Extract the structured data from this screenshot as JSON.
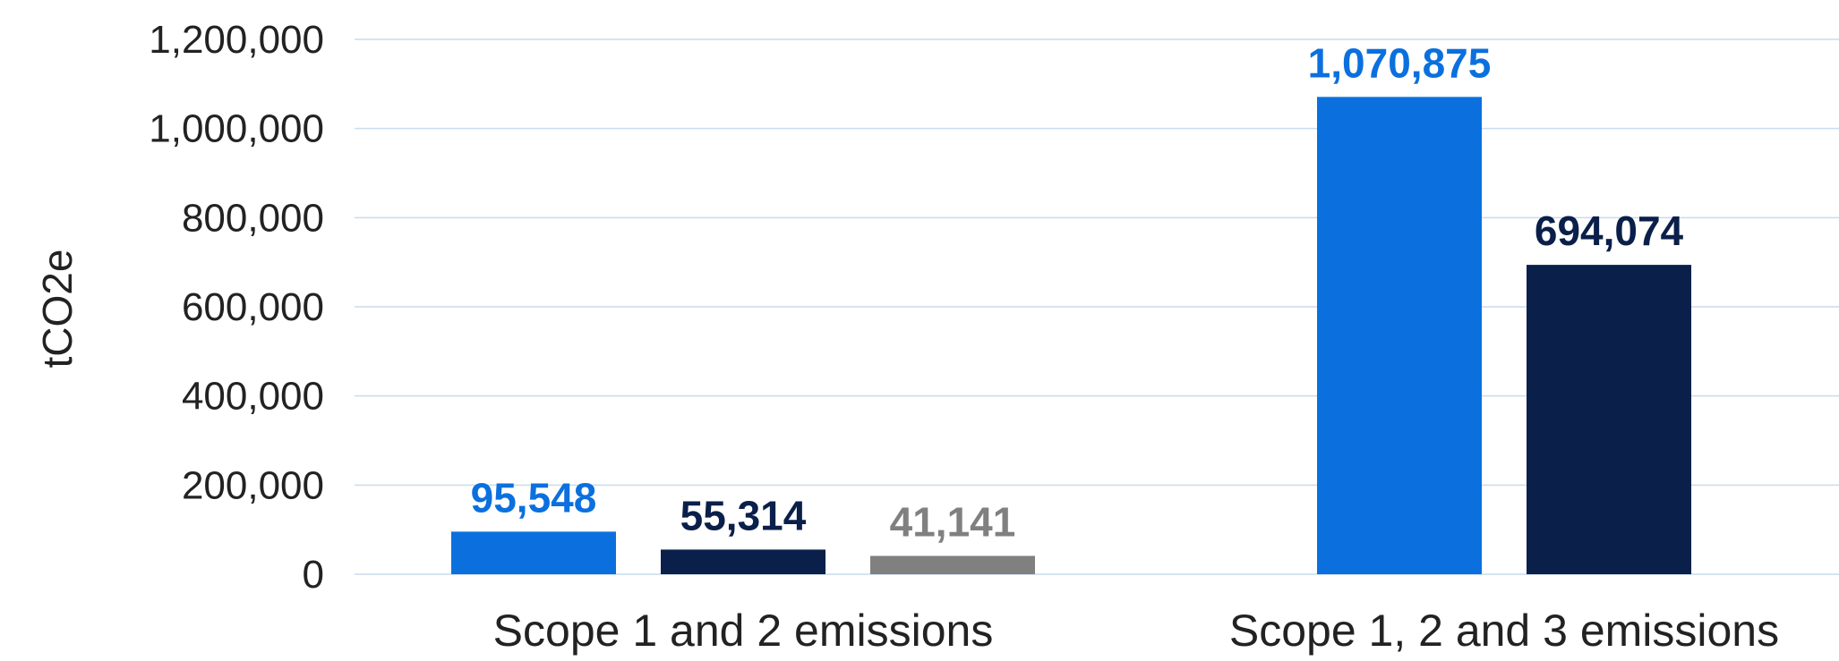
{
  "chart_data": {
    "type": "bar",
    "title": "",
    "xlabel": "",
    "ylabel": "tCO2e",
    "ylim": [
      0,
      1200000
    ],
    "yticks": [
      "0",
      "200,000",
      "400,000",
      "600,000",
      "800,000",
      "1,000,000",
      "1,200,000"
    ],
    "grid": true,
    "categories": [
      "Scope 1 and 2 emissions",
      "Scope 1, 2 and 3 emissions"
    ],
    "series": [
      {
        "color": "#0b70de",
        "values": [
          95548,
          1070875
        ],
        "labels": [
          "95,548",
          "1,070,875"
        ]
      },
      {
        "color": "#0a1f4a",
        "values": [
          55314,
          694074
        ],
        "labels": [
          "55,314",
          "694,074"
        ]
      },
      {
        "color": "#808080",
        "values": [
          41141,
          null
        ],
        "labels": [
          "41,141",
          ""
        ]
      }
    ],
    "colors": {
      "grid": "#c9dcee",
      "text": "#222222"
    }
  }
}
